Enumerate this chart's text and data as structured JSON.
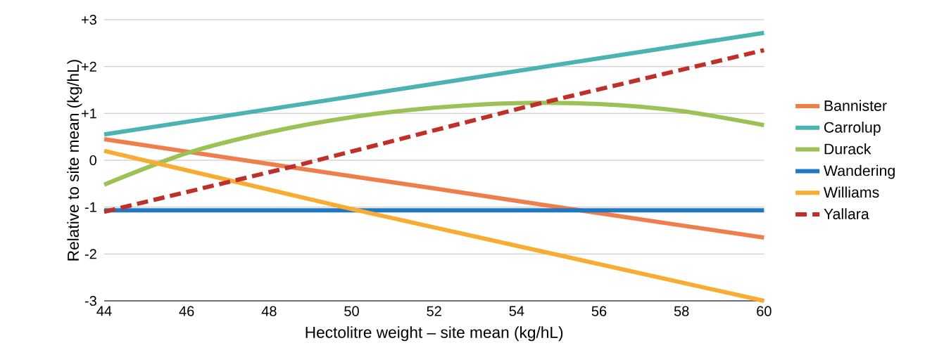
{
  "chart_data": {
    "type": "line",
    "xlabel": "Hectolitre weight – site mean (kg/hL)",
    "ylabel": "Relative to site mean (kg/hL)",
    "xlim": [
      44,
      60
    ],
    "xticks": [
      44,
      46,
      48,
      50,
      52,
      54,
      56,
      58,
      60
    ],
    "ylim": [
      -3,
      3
    ],
    "yticks": [
      {
        "value": 3,
        "label": "+3"
      },
      {
        "value": 2,
        "label": "+2"
      },
      {
        "value": 1,
        "label": "+1"
      },
      0,
      -1,
      -2,
      -3
    ],
    "grid": "y",
    "legend": "right",
    "marker": "none",
    "series": [
      {
        "name": "Bannister",
        "color": "#ef7e4c",
        "x": [
          44,
          48,
          52,
          56,
          60
        ],
        "values": [
          0.45,
          -0.08,
          -0.6,
          -1.13,
          -1.65
        ]
      },
      {
        "name": "Carrolup",
        "color": "#4ab4b2",
        "x": [
          44,
          52,
          60
        ],
        "values": [
          0.55,
          1.63,
          2.72
        ]
      },
      {
        "name": "Durack",
        "color": "#9cc155",
        "x": [
          44,
          46,
          48,
          50,
          52,
          54,
          56,
          58,
          60
        ],
        "values": [
          -0.52,
          0.15,
          0.6,
          0.92,
          1.12,
          1.22,
          1.2,
          1.05,
          0.75
        ]
      },
      {
        "name": "Wandering",
        "color": "#1f78c1",
        "x": [
          44,
          60
        ],
        "values": [
          -1.07,
          -1.07
        ]
      },
      {
        "name": "Williams",
        "color": "#f8ad32",
        "x": [
          44,
          50,
          60
        ],
        "values": [
          0.2,
          -1.04,
          -3.0
        ]
      },
      {
        "name": "Yallara",
        "color": "#c0302a",
        "line_style": "dashed",
        "x": [
          44,
          48.5,
          54.5,
          60
        ],
        "values": [
          -1.1,
          -0.15,
          1.2,
          2.35
        ]
      }
    ]
  }
}
